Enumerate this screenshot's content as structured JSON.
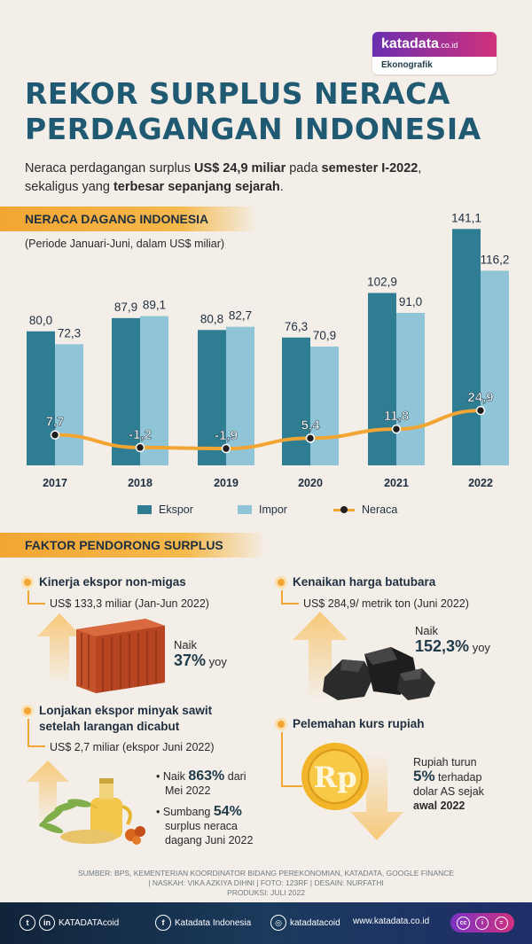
{
  "brand": {
    "name": "katadata",
    "domain_suffix": ".co.id",
    "section": "Ekonografik"
  },
  "title_line1": "REKOR SURPLUS NERACA",
  "title_line2": "PERDAGANGAN INDONESIA",
  "subtitle": {
    "part1": "Neraca perdagangan surplus ",
    "bold1": "US$ 24,9 miliar",
    "part2": " pada ",
    "bold2": "semester I-2022",
    "part3": ",",
    "line2_part1": "sekaligus yang ",
    "line2_bold": "terbesar sepanjang sejarah",
    "line2_part2": "."
  },
  "chart_section_title": "NERACA DAGANG INDONESIA",
  "period_label": "(Periode Januari-Juni, dalam US$ miliar)",
  "chart_data": {
    "type": "bar",
    "title": "NERACA DAGANG INDONESIA",
    "subtitle": "(Periode Januari-Juni, dalam US$ miliar)",
    "categories": [
      "2017",
      "2018",
      "2019",
      "2020",
      "2021",
      "2022"
    ],
    "series": [
      {
        "name": "Ekspor",
        "values": [
          80.0,
          87.9,
          80.8,
          76.3,
          102.9,
          141.1
        ],
        "labels": [
          "80,0",
          "87,9",
          "80,8",
          "76,3",
          "102,9",
          "141,1"
        ],
        "color": "#2f7d93"
      },
      {
        "name": "Impor",
        "values": [
          72.3,
          89.1,
          82.7,
          70.9,
          91.0,
          116.2
        ],
        "labels": [
          "72,3",
          "89,1",
          "82,7",
          "70,9",
          "91,0",
          "116,2"
        ],
        "color": "#8fc5d6"
      }
    ],
    "line_series": {
      "name": "Neraca",
      "values": [
        7.7,
        -1.2,
        -1.9,
        5.4,
        11.8,
        24.9
      ],
      "labels": [
        "7,7",
        "-1,2",
        "-1,9",
        "5,4",
        "11,8",
        "24,9"
      ],
      "color": "#f2a532"
    },
    "ylim": [
      0,
      150
    ],
    "legend": [
      "Ekspor",
      "Impor",
      "Neraca"
    ],
    "legend_position": "bottom"
  },
  "factors_title": "FAKTOR PENDORONG SURPLUS",
  "factors": {
    "f1": {
      "title": "Kinerja ekspor non-migas",
      "value": "US$ 133,3 miliar (Jan-Jun 2022)",
      "naik": "Naik",
      "pct": "37%",
      "yoy": "yoy"
    },
    "f2": {
      "title": "Kenaikan harga batubara",
      "value": "US$ 284,9/ metrik ton (Juni 2022)",
      "naik": "Naik",
      "pct": "152,3%",
      "yoy": "yoy"
    },
    "f3": {
      "title_line1": "Lonjakan ekspor minyak sawit",
      "title_line2": "setelah larangan dicabut",
      "value": "US$ 2,7 miliar (ekspor Juni 2022)",
      "item1_pre": "Naik ",
      "item1_big": "863%",
      "item1_post": " dari",
      "item1_line2": "Mei 2022",
      "item2_pre": "Sumbang ",
      "item2_big": "54%",
      "item2_line2": "surplus neraca",
      "item2_line3": "dagang Juni 2022"
    },
    "f4": {
      "title": "Pelemahan kurs rupiah",
      "line1": "Rupiah turun",
      "big": "5%",
      "line2_post": " terhadap",
      "line3": "dolar AS sejak",
      "line4": "awal 2022"
    }
  },
  "source_line1": "SUMBER: BPS, KEMENTERIAN KOORDINATOR BIDANG PEREKONOMIAN, KATADATA, GOOGLE FINANCE",
  "source_line2": "| NASKAH: VIKA AZKIYA DIHNI | FOTO: 123RF | DESAIN: NURFATHI",
  "source_line3": "PRODUKSI: JULI 2022",
  "footer": {
    "social1": "KATADATAcoid",
    "social2": "Katadata Indonesia",
    "social3": "katadatacoid",
    "website": "www.katadata.co.id"
  },
  "colors": {
    "ekspor": "#2f7d93",
    "impor": "#8fc5d6",
    "neraca": "#f2a532",
    "accent": "#f2a532",
    "title": "#1f5a72"
  }
}
